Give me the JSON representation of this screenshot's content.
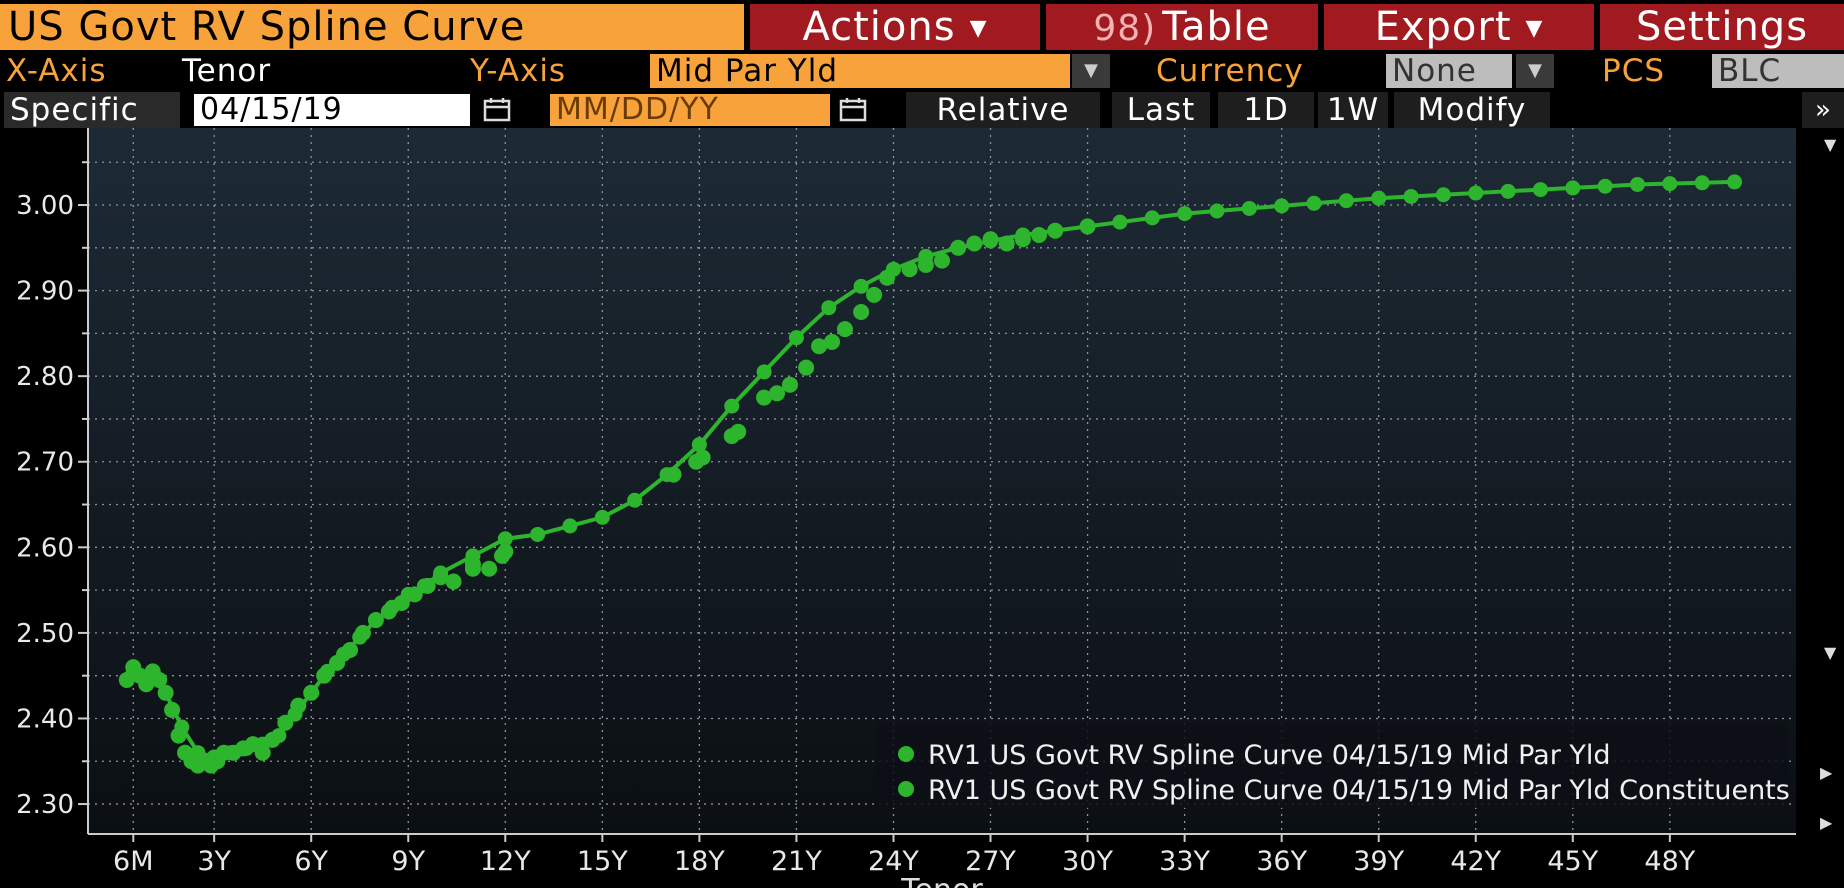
{
  "toolbar": {
    "title": "US Govt RV Spline Curve",
    "actions_label": "Actions",
    "table_num": "98)",
    "table_label": "Table",
    "export_label": "Export",
    "settings_label": "Settings"
  },
  "axis_row": {
    "xaxis_label": "X-Axis",
    "xaxis_value": "Tenor",
    "yaxis_label": "Y-Axis",
    "yaxis_value": "Mid Par Yld",
    "currency_label": "Currency",
    "currency_value": "None",
    "pcs_label": "PCS",
    "pcs_value": "BLC"
  },
  "date_row": {
    "specific_label": "Specific",
    "date_value": "04/15/19",
    "compare_placeholder": "MM/DD/YY",
    "relative_label": "Relative",
    "last_label": "Last",
    "btn_1d": "1D",
    "btn_1w": "1W",
    "modify_label": "Modify",
    "more_glyph": "»"
  },
  "colors": {
    "accent": "#f7a23a",
    "menu": "#a11a20",
    "series": "#2db52d",
    "plot_bg_top": "#1d2a35",
    "plot_bg_bottom": "#0b0f13"
  },
  "chart_data": {
    "type": "scatter",
    "xlabel": "Tenor",
    "ylabel": "",
    "x_tick_labels": [
      "6M",
      "3Y",
      "6Y",
      "9Y",
      "12Y",
      "15Y",
      "18Y",
      "21Y",
      "24Y",
      "27Y",
      "30Y",
      "33Y",
      "36Y",
      "39Y",
      "42Y",
      "45Y",
      "48Y"
    ],
    "x_tick_values": [
      0.5,
      3,
      6,
      9,
      12,
      15,
      18,
      21,
      24,
      27,
      30,
      33,
      36,
      39,
      42,
      45,
      48
    ],
    "y_tick_labels": [
      "2.30",
      "2.40",
      "2.50",
      "2.60",
      "2.70",
      "2.80",
      "2.90",
      "3.00"
    ],
    "xlim": [
      -0.9,
      51.9
    ],
    "ylim": [
      2.265,
      3.09
    ],
    "grid": true,
    "legend_position": "bottom-right",
    "series": [
      {
        "name": "RV1 US Govt RV Spline Curve 04/15/19 Mid Par Yld",
        "style": "line+markers",
        "x": [
          0.5,
          1,
          1.5,
          2,
          2.5,
          3,
          3.5,
          4,
          4.5,
          5,
          5.5,
          6,
          6.5,
          7,
          7.5,
          8,
          8.5,
          9,
          9.5,
          10,
          11,
          12,
          13,
          14,
          15,
          16,
          17,
          18,
          19,
          20,
          21,
          22,
          23,
          24,
          25,
          26,
          27,
          28,
          29,
          30,
          31,
          32,
          33,
          34,
          35,
          36,
          37,
          38,
          39,
          40,
          41,
          42,
          43,
          44,
          45,
          46,
          47,
          48,
          49,
          50
        ],
        "y": [
          2.455,
          2.45,
          2.43,
          2.39,
          2.36,
          2.355,
          2.36,
          2.365,
          2.37,
          2.38,
          2.405,
          2.43,
          2.455,
          2.475,
          2.495,
          2.515,
          2.53,
          2.545,
          2.555,
          2.57,
          2.59,
          2.61,
          2.615,
          2.625,
          2.635,
          2.655,
          2.685,
          2.72,
          2.765,
          2.805,
          2.845,
          2.88,
          2.905,
          2.925,
          2.94,
          2.95,
          2.958,
          2.965,
          2.97,
          2.975,
          2.98,
          2.985,
          2.99,
          2.993,
          2.996,
          2.999,
          3.002,
          3.005,
          3.008,
          3.01,
          3.012,
          3.014,
          3.016,
          3.018,
          3.02,
          3.022,
          3.024,
          3.025,
          3.026,
          3.027
        ]
      },
      {
        "name": "RV1 US Govt RV Spline Curve 04/15/19 Mid Par Yld Constituents",
        "style": "markers",
        "x": [
          0.3,
          0.5,
          0.7,
          0.9,
          1.1,
          1.3,
          1.5,
          1.7,
          1.9,
          2.1,
          2.3,
          2.5,
          2.7,
          2.9,
          3.1,
          3.3,
          3.6,
          3.9,
          4.2,
          4.5,
          4.8,
          5.2,
          5.6,
          6.0,
          6.4,
          6.8,
          7.2,
          7.6,
          8.0,
          8.4,
          8.8,
          9.2,
          9.6,
          10.0,
          10.4,
          11.0,
          11.5,
          12.0,
          11.0,
          11.9,
          17.2,
          17.9,
          18.1,
          19.0,
          19.2,
          20.0,
          20.4,
          20.8,
          21.3,
          21.7,
          22.1,
          22.5,
          23.0,
          23.4,
          23.8,
          24.5,
          25.0,
          25.5,
          26.0,
          26.5,
          27.0,
          27.5,
          28.0,
          28.5,
          29.0,
          30.0
        ],
        "y": [
          2.445,
          2.46,
          2.45,
          2.44,
          2.455,
          2.445,
          2.43,
          2.41,
          2.38,
          2.36,
          2.35,
          2.345,
          2.35,
          2.345,
          2.35,
          2.36,
          2.36,
          2.365,
          2.37,
          2.36,
          2.375,
          2.395,
          2.415,
          2.43,
          2.45,
          2.465,
          2.48,
          2.5,
          2.515,
          2.525,
          2.535,
          2.545,
          2.555,
          2.565,
          2.56,
          2.58,
          2.575,
          2.595,
          2.575,
          2.59,
          2.685,
          2.7,
          2.705,
          2.73,
          2.735,
          2.775,
          2.78,
          2.79,
          2.81,
          2.835,
          2.84,
          2.855,
          2.875,
          2.895,
          2.915,
          2.925,
          2.93,
          2.935,
          2.95,
          2.955,
          2.96,
          2.955,
          2.96,
          2.965,
          2.97,
          2.975
        ]
      }
    ]
  }
}
